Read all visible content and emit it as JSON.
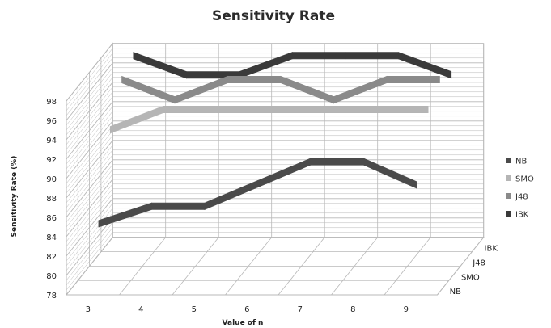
{
  "chart_data": {
    "type": "line",
    "title": "Sensitivity Rate",
    "xlabel": "Value of n",
    "ylabel": "Sensitivity Rate (%)",
    "x": [
      3,
      4,
      5,
      6,
      7,
      8,
      9
    ],
    "depth_categories": [
      "NB",
      "SMO",
      "J48",
      "IBK"
    ],
    "ylim": [
      78,
      98
    ],
    "y_ticks": [
      78,
      80,
      82,
      84,
      86,
      88,
      90,
      92,
      94,
      96,
      98
    ],
    "grid": true,
    "legend_position": "right",
    "series": [
      {
        "name": "NB",
        "color": "#4a4a4a",
        "values": [
          84.6,
          86.4,
          86.4,
          88.7,
          91.0,
          91.0,
          88.6
        ]
      },
      {
        "name": "SMO",
        "color": "#b5b5b5",
        "values": [
          92.8,
          94.9,
          94.9,
          94.9,
          94.9,
          94.9,
          94.9
        ]
      },
      {
        "name": "J48",
        "color": "#8a8a8a",
        "values": [
          96.5,
          94.4,
          96.5,
          96.5,
          94.4,
          96.5,
          96.5
        ]
      },
      {
        "name": "IBK",
        "color": "#3a3a3a",
        "values": [
          97.5,
          95.5,
          95.5,
          97.5,
          97.5,
          97.5,
          95.5
        ]
      }
    ]
  }
}
